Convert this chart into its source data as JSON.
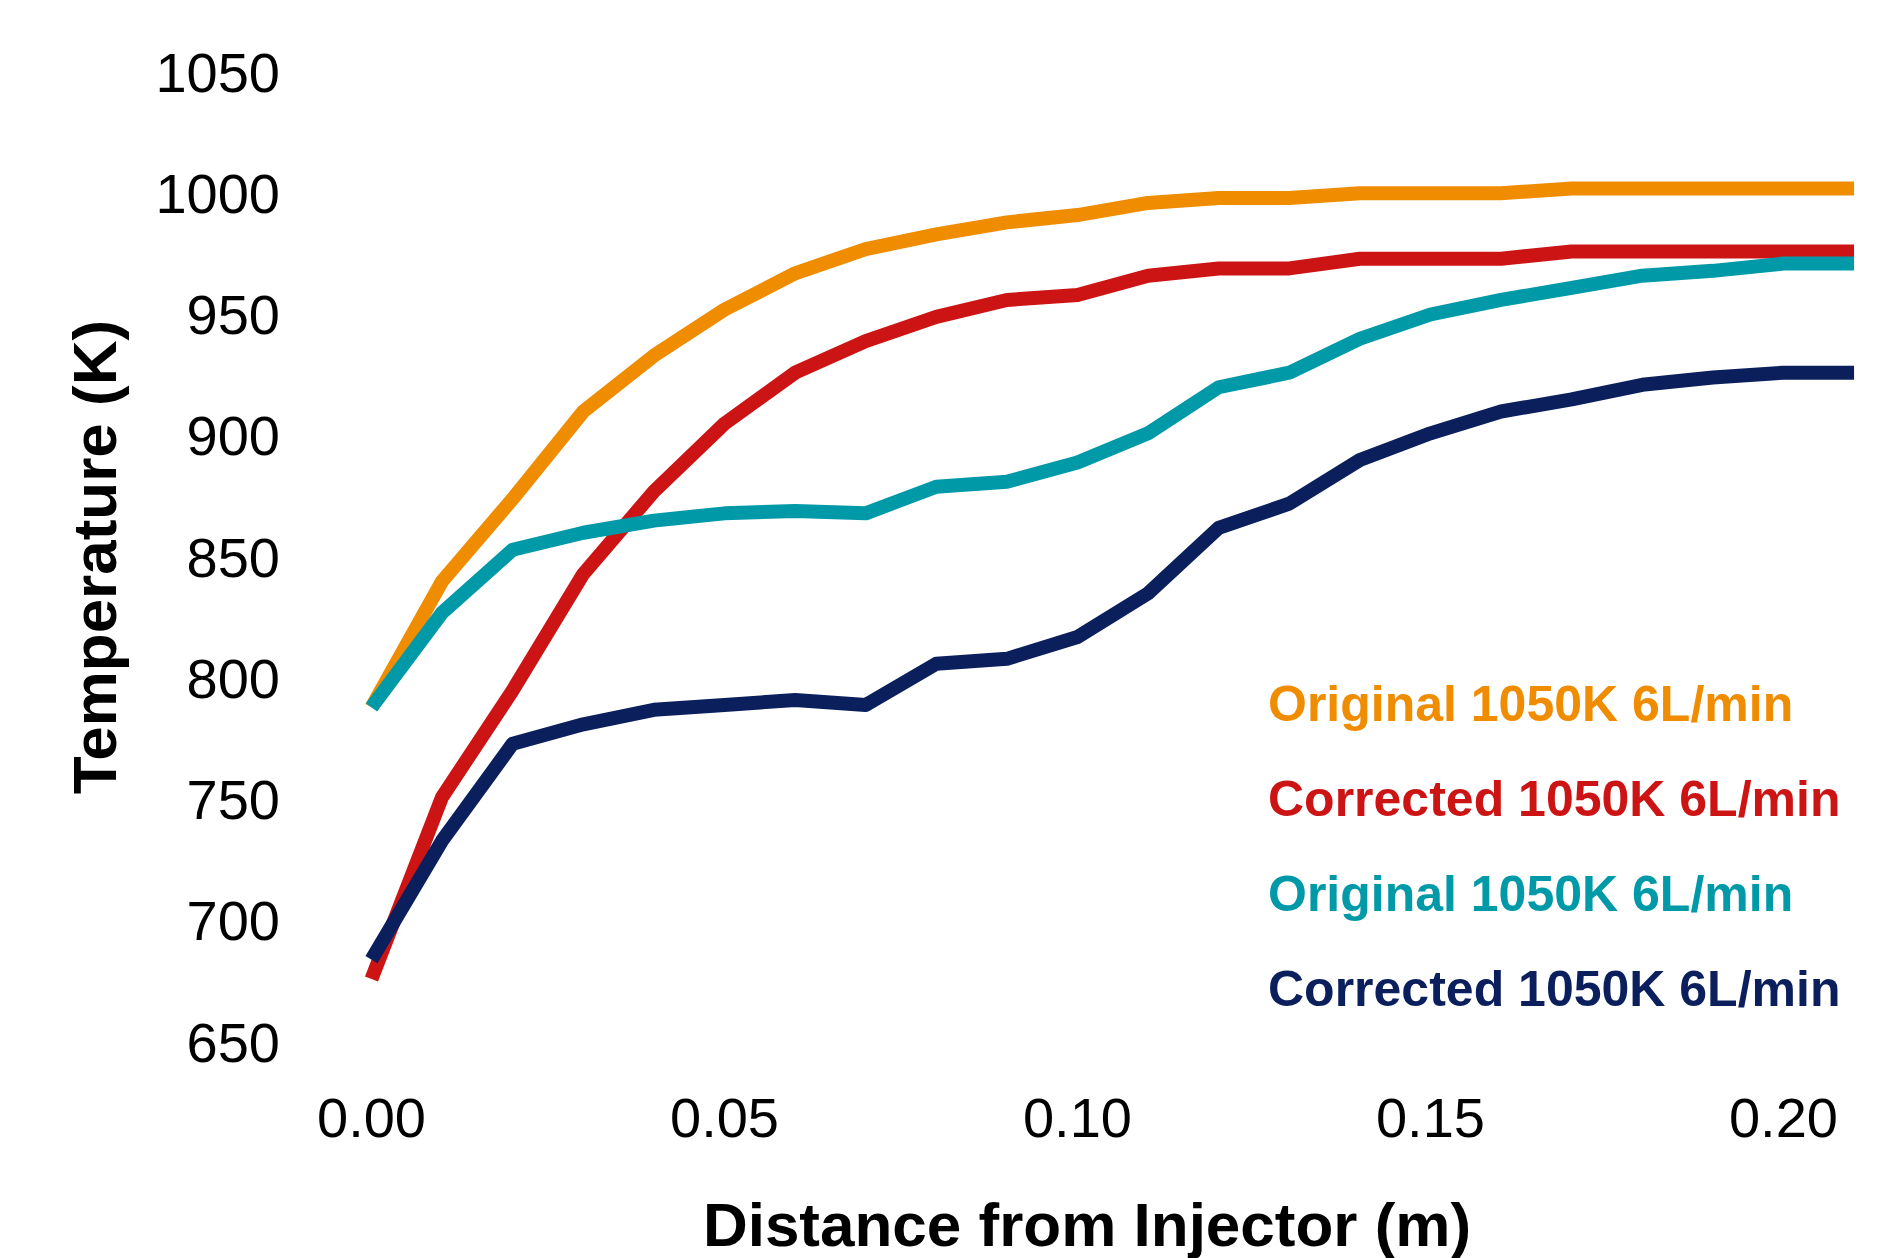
{
  "chart_data": {
    "type": "line",
    "xlabel": "Distance from Injector (m)",
    "ylabel": "Temperature (K)",
    "x": [
      0,
      0.01,
      0.02,
      0.03,
      0.04,
      0.05,
      0.06,
      0.07,
      0.08,
      0.09,
      0.1,
      0.11,
      0.12,
      0.13,
      0.14,
      0.15,
      0.16,
      0.17,
      0.18,
      0.19,
      0.2,
      0.21
    ],
    "series": [
      {
        "name": "Original 1050K 6L/min",
        "color": "#f08c00",
        "values": [
          788,
          840,
          874,
          910,
          933,
          952,
          967,
          977,
          983,
          988,
          991,
          996,
          998,
          998,
          1000,
          1000,
          1000,
          1002,
          1002,
          1002,
          1002,
          1002
        ]
      },
      {
        "name": "Corrected 1050K 6L/min",
        "color": "#cc1414",
        "values": [
          676,
          751,
          795,
          843,
          877,
          905,
          926,
          939,
          949,
          956,
          958,
          966,
          969,
          969,
          973,
          973,
          973,
          976,
          976,
          976,
          976,
          976
        ]
      },
      {
        "name": "Original 1050K 6L/min",
        "color": "#0099a8",
        "values": [
          788,
          827,
          853,
          860,
          865,
          868,
          869,
          868,
          879,
          881,
          889,
          901,
          920,
          926,
          940,
          950,
          956,
          961,
          966,
          968,
          971,
          971
        ]
      },
      {
        "name": "Corrected 1050K 6L/min",
        "color": "#0a1f5c",
        "values": [
          684,
          733,
          773,
          781,
          787,
          789,
          791,
          789,
          806,
          808,
          817,
          835,
          862,
          872,
          890,
          901,
          910,
          915,
          921,
          924,
          926,
          926
        ]
      }
    ],
    "xlim": [
      0,
      0.2141
    ],
    "ylim": [
      650,
      1050
    ],
    "xticks": [
      {
        "value": 0,
        "label": "0.00"
      },
      {
        "value": 0.05,
        "label": "0.05"
      },
      {
        "value": 0.1,
        "label": "0.10"
      },
      {
        "value": 0.15,
        "label": "0.15"
      },
      {
        "value": 0.2,
        "label": "0.20"
      }
    ],
    "yticks": [
      650,
      700,
      750,
      800,
      850,
      900,
      950,
      1000,
      1050
    ],
    "legend": "bottom right",
    "grid": false,
    "marker": "none",
    "line_style": "solid"
  }
}
